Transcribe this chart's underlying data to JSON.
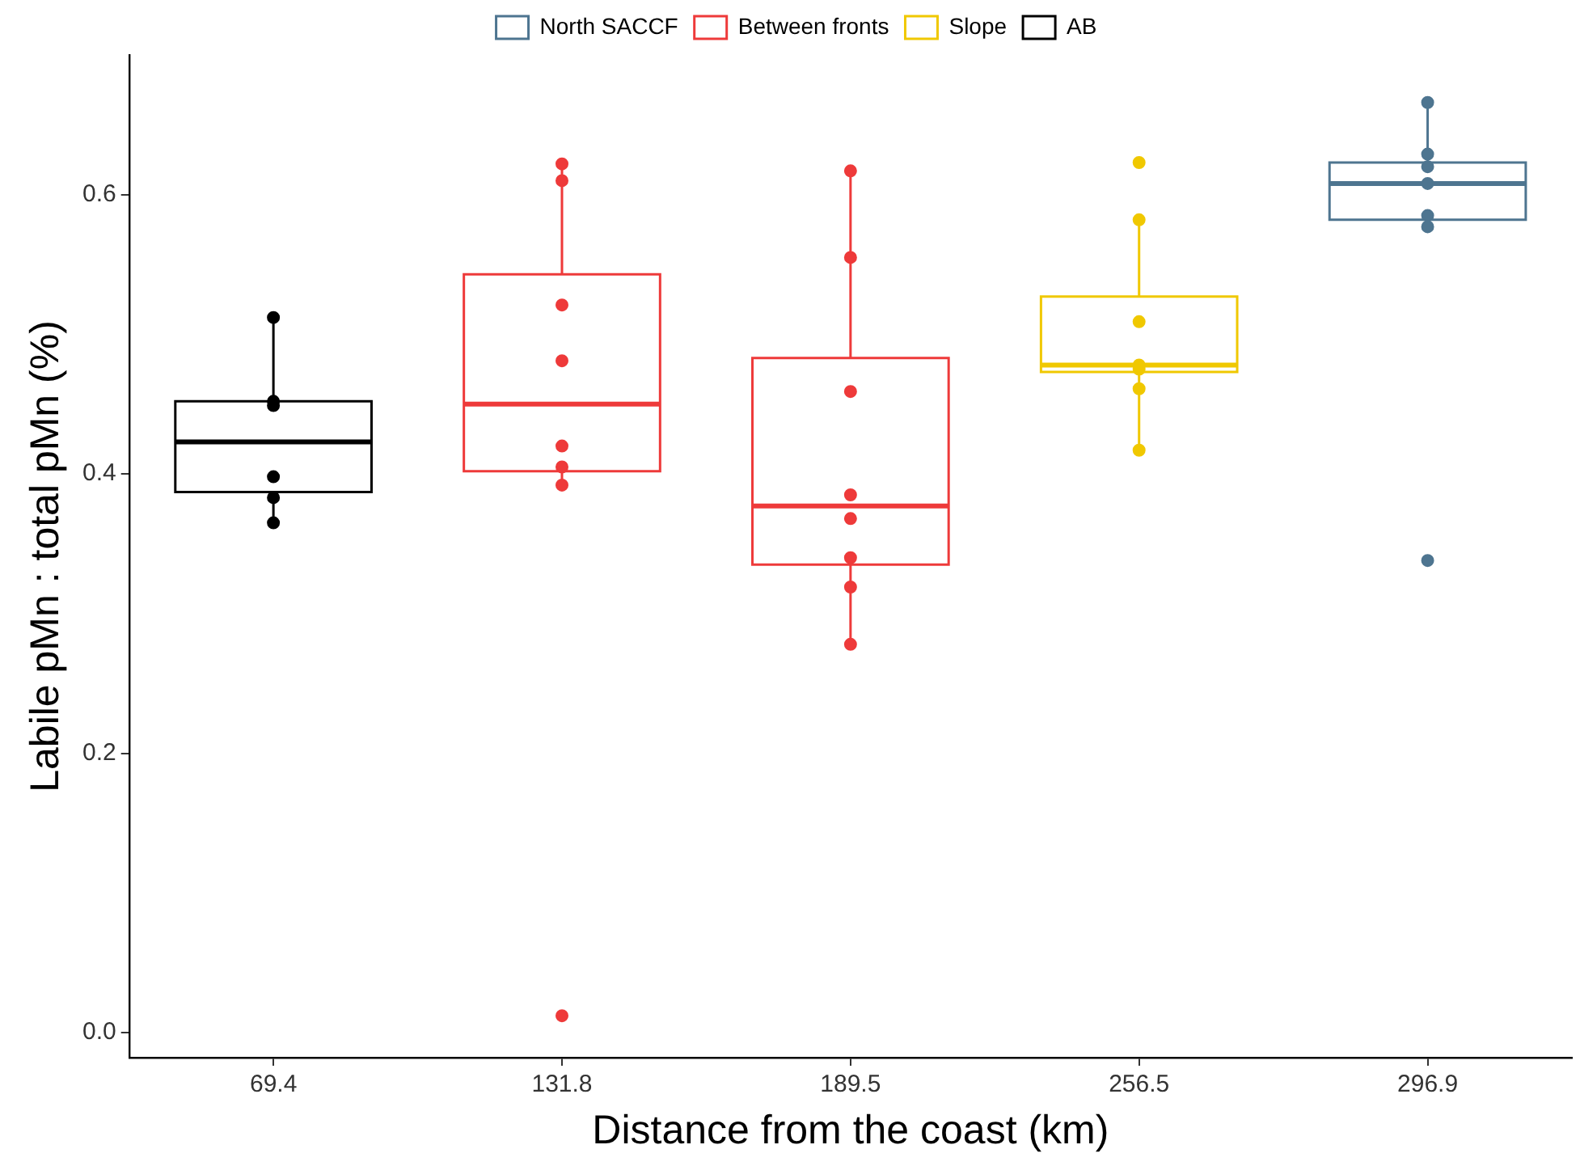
{
  "chart_data": {
    "type": "box",
    "xlabel": "Distance from the coast (km)",
    "ylabel": "Labile pMn : total pMn (%)",
    "categories": [
      "69.4",
      "131.8",
      "189.5",
      "256.5",
      "296.9"
    ],
    "ylim": [
      -0.018,
      0.7
    ],
    "yticks": [
      {
        "value": 0,
        "label": "0.0"
      },
      0.2,
      0.4,
      0.6
    ],
    "grid": false,
    "legend": "top",
    "marker": "circle",
    "series": [
      {
        "name": "North SACCF",
        "color": "#4e7590",
        "boxes": [
          null,
          null,
          null,
          null,
          {
            "low": 0.577,
            "q1": 0.582,
            "median": 0.608,
            "q3": 0.623,
            "high": 0.666
          }
        ]
      },
      {
        "name": "Between fronts",
        "color": "#ee3a3a",
        "boxes": [
          null,
          {
            "low": 0.392,
            "q1": 0.402,
            "median": 0.45,
            "q3": 0.543,
            "high": 0.622
          },
          {
            "low": 0.278,
            "q1": 0.335,
            "median": 0.377,
            "q3": 0.483,
            "high": 0.617
          },
          null,
          null
        ]
      },
      {
        "name": "Slope",
        "color": "#f0c800",
        "boxes": [
          null,
          null,
          null,
          {
            "low": 0.417,
            "q1": 0.473,
            "median": 0.478,
            "q3": 0.527,
            "high": 0.582
          },
          null
        ]
      },
      {
        "name": "AB",
        "color": "#000000",
        "boxes": [
          {
            "low": 0.365,
            "q1": 0.387,
            "median": 0.423,
            "q3": 0.452,
            "high": 0.512
          },
          null,
          null,
          null,
          null
        ]
      },
      {
        "type": "scatter",
        "color": "#4e7590",
        "x": [
          "296.9",
          "296.9",
          "296.9",
          "296.9",
          "296.9",
          "296.9",
          "296.9"
        ],
        "values": [
          0.666,
          0.629,
          0.62,
          0.608,
          0.585,
          0.577,
          0.338
        ]
      },
      {
        "type": "scatter",
        "color": "#ee3a3a",
        "x": [
          "131.8",
          "131.8",
          "131.8",
          "131.8",
          "131.8",
          "131.8",
          "131.8",
          "131.8"
        ],
        "values": [
          0.622,
          0.61,
          0.521,
          0.481,
          0.42,
          0.405,
          0.392,
          0.012
        ]
      },
      {
        "type": "scatter",
        "color": "#ee3a3a",
        "x": [
          "189.5",
          "189.5",
          "189.5",
          "189.5",
          "189.5",
          "189.5",
          "189.5",
          "189.5"
        ],
        "values": [
          0.617,
          0.555,
          0.459,
          0.385,
          0.368,
          0.34,
          0.319,
          0.278
        ]
      },
      {
        "type": "scatter",
        "color": "#f0c800",
        "x": [
          "256.5",
          "256.5",
          "256.5",
          "256.5",
          "256.5",
          "256.5",
          "256.5"
        ],
        "values": [
          0.623,
          0.582,
          0.509,
          0.478,
          0.475,
          0.461,
          0.417
        ]
      },
      {
        "type": "scatter",
        "color": "#000000",
        "x": [
          "69.4",
          "69.4",
          "69.4",
          "69.4",
          "69.4",
          "69.4"
        ],
        "values": [
          0.512,
          0.452,
          0.449,
          0.398,
          0.383,
          0.365
        ]
      }
    ]
  }
}
